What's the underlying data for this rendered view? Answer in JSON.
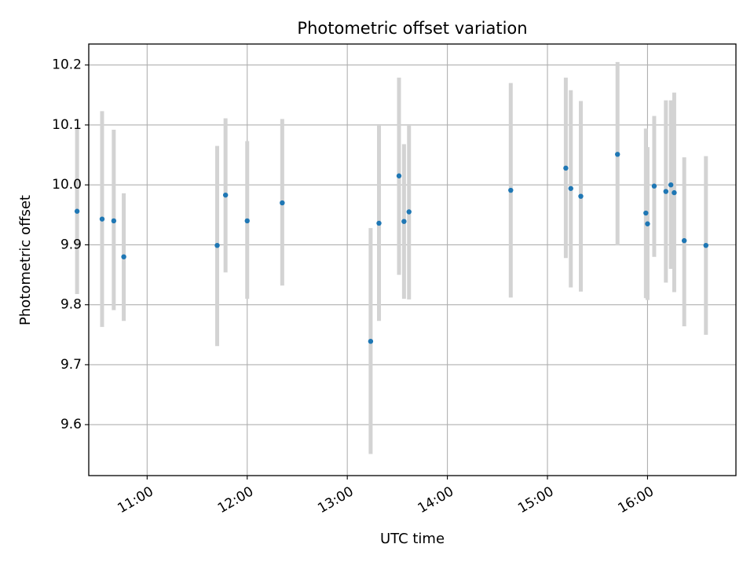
{
  "chart_data": {
    "type": "scatter",
    "title": "Photometric offset variation",
    "xlabel": "UTC time",
    "ylabel": "Photometric offset",
    "xlim": [
      "10:25",
      "16:53"
    ],
    "ylim": [
      9.515,
      10.235
    ],
    "grid": true,
    "x_ticks": [
      "11:00",
      "12:00",
      "13:00",
      "14:00",
      "15:00",
      "16:00"
    ],
    "y_ticks": [
      "9.6",
      "9.7",
      "9.8",
      "9.9",
      "10.0",
      "10.1",
      "10.2"
    ],
    "colors": {
      "points": "#1f77b4",
      "errorbars": "#d3d3d3",
      "grid": "#b0b0b0"
    },
    "points": [
      {
        "x": "10:18",
        "y": 9.956,
        "err_low": 9.818,
        "err_high": 10.095
      },
      {
        "x": "10:33",
        "y": 9.943,
        "err_low": 9.763,
        "err_high": 10.123
      },
      {
        "x": "10:40",
        "y": 9.94,
        "err_low": 9.791,
        "err_high": 10.092
      },
      {
        "x": "10:46",
        "y": 9.88,
        "err_low": 9.773,
        "err_high": 9.986
      },
      {
        "x": "11:42",
        "y": 9.899,
        "err_low": 9.731,
        "err_high": 10.065
      },
      {
        "x": "11:47",
        "y": 9.983,
        "err_low": 9.854,
        "err_high": 10.111
      },
      {
        "x": "12:00",
        "y": 9.94,
        "err_low": 9.81,
        "err_high": 10.073
      },
      {
        "x": "12:21",
        "y": 9.97,
        "err_low": 9.832,
        "err_high": 10.11
      },
      {
        "x": "13:14",
        "y": 9.739,
        "err_low": 9.551,
        "err_high": 9.928
      },
      {
        "x": "13:19",
        "y": 9.936,
        "err_low": 9.773,
        "err_high": 10.1
      },
      {
        "x": "13:31",
        "y": 10.015,
        "err_low": 9.85,
        "err_high": 10.179
      },
      {
        "x": "13:34",
        "y": 9.939,
        "err_low": 9.81,
        "err_high": 10.068
      },
      {
        "x": "13:37",
        "y": 9.955,
        "err_low": 9.809,
        "err_high": 10.1
      },
      {
        "x": "14:38",
        "y": 9.991,
        "err_low": 9.812,
        "err_high": 10.17
      },
      {
        "x": "15:11",
        "y": 10.028,
        "err_low": 9.878,
        "err_high": 10.179
      },
      {
        "x": "15:14",
        "y": 9.994,
        "err_low": 9.829,
        "err_high": 10.158
      },
      {
        "x": "15:20",
        "y": 9.981,
        "err_low": 9.822,
        "err_high": 10.14
      },
      {
        "x": "15:42",
        "y": 10.051,
        "err_low": 9.899,
        "err_high": 10.205
      },
      {
        "x": "15:59",
        "y": 9.953,
        "err_low": 9.811,
        "err_high": 10.094
      },
      {
        "x": "16:00",
        "y": 9.935,
        "err_low": 9.808,
        "err_high": 10.063
      },
      {
        "x": "16:04",
        "y": 9.998,
        "err_low": 9.88,
        "err_high": 10.115
      },
      {
        "x": "16:11",
        "y": 9.989,
        "err_low": 9.837,
        "err_high": 10.141
      },
      {
        "x": "16:14",
        "y": 10.0,
        "err_low": 9.86,
        "err_high": 10.141
      },
      {
        "x": "16:16",
        "y": 9.987,
        "err_low": 9.821,
        "err_high": 10.154
      },
      {
        "x": "16:22",
        "y": 9.907,
        "err_low": 9.764,
        "err_high": 10.046
      },
      {
        "x": "16:35",
        "y": 9.899,
        "err_low": 9.75,
        "err_high": 10.048
      }
    ]
  }
}
